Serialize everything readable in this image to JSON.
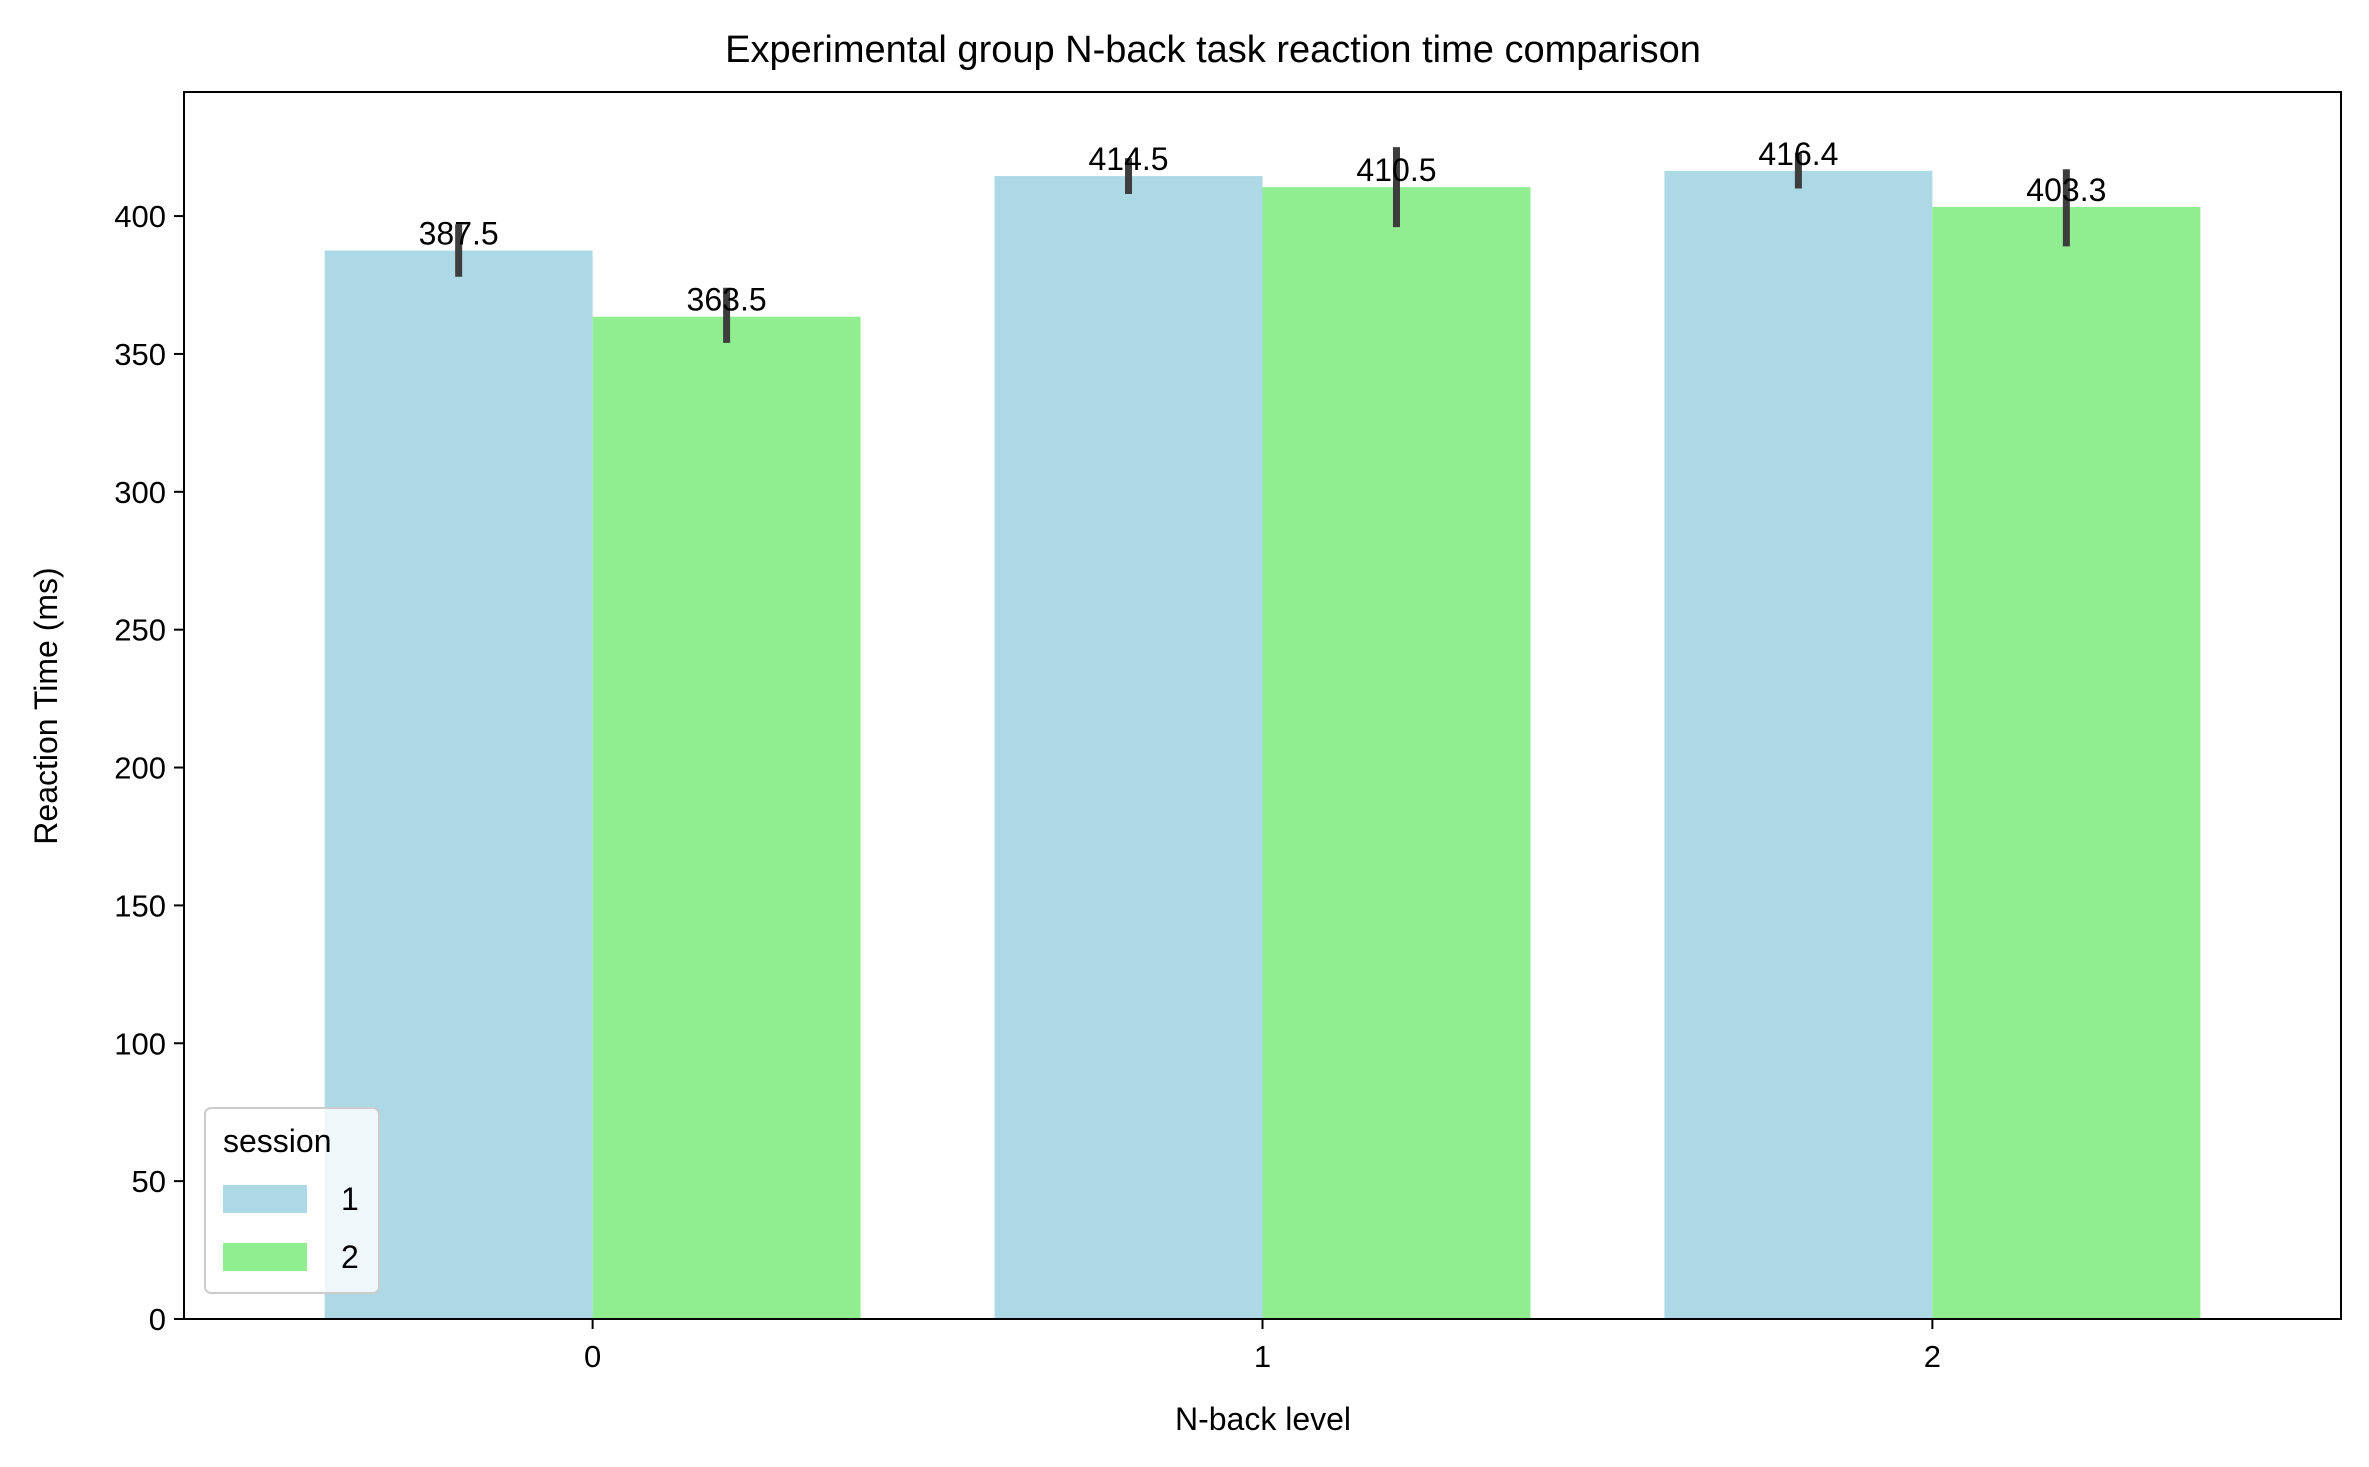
{
  "chart_data": {
    "type": "bar",
    "title": "Experimental group N-back task reaction time comparison",
    "xlabel": "N-back level",
    "ylabel": "Reaction Time (ms)",
    "categories": [
      "0",
      "1",
      "2"
    ],
    "ylim": [
      0,
      445
    ],
    "yticks": [
      0,
      50,
      100,
      150,
      200,
      250,
      300,
      350,
      400
    ],
    "grid": false,
    "legend": {
      "title": "session",
      "placement": "lower-left"
    },
    "series": [
      {
        "name": "1",
        "color": "#add8e6",
        "values": [
          387.5,
          414.5,
          416.4
        ],
        "labels": [
          "387.5",
          "414.5",
          "416.4"
        ],
        "err_low": [
          378,
          408,
          410
        ],
        "err_high": [
          397,
          421,
          423
        ]
      },
      {
        "name": "2",
        "color": "#90ee90",
        "values": [
          363.5,
          410.5,
          403.3
        ],
        "labels": [
          "363.5",
          "410.5",
          "403.3"
        ],
        "err_low": [
          354,
          396,
          389
        ],
        "err_high": [
          374,
          425,
          417
        ]
      }
    ]
  }
}
